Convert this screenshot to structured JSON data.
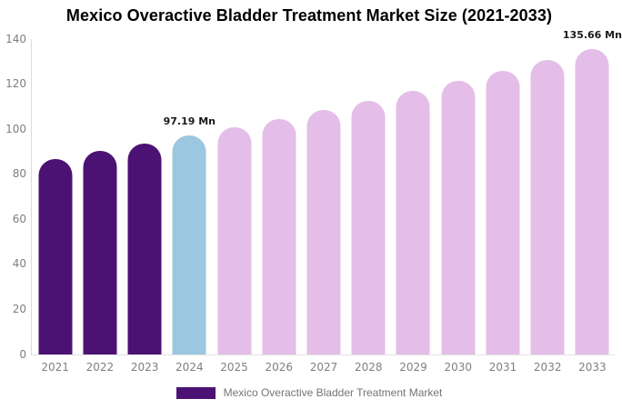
{
  "title": "Mexico Overactive Bladder Treatment Market Size (2021-2033)",
  "chart_data": {
    "type": "bar",
    "title": "Mexico Overactive Bladder Treatment Market Size (2021-2033)",
    "categories": [
      "2021",
      "2022",
      "2023",
      "2024",
      "2025",
      "2026",
      "2027",
      "2028",
      "2029",
      "2030",
      "2031",
      "2032",
      "2033"
    ],
    "values": [
      86.96,
      90.24,
      93.65,
      97.19,
      100.86,
      104.67,
      108.62,
      112.72,
      116.98,
      121.4,
      125.98,
      130.74,
      135.66
    ],
    "bar_colors": [
      "#4B1274",
      "#4B1274",
      "#4B1274",
      "#9CC7E0",
      "#E4BDE8",
      "#E4BDE8",
      "#E4BDE8",
      "#E4BDE8",
      "#E4BDE8",
      "#E4BDE8",
      "#E4BDE8",
      "#E4BDE8",
      "#E4BDE8"
    ],
    "annotations": [
      {
        "category": "2024",
        "text": "97.19 Mn"
      },
      {
        "category": "2033",
        "text": "135.66 Mn"
      }
    ],
    "xlabel": "",
    "ylabel": "",
    "ylim": [
      0,
      140
    ],
    "yticks": [
      0,
      20,
      40,
      60,
      80,
      100,
      120,
      140
    ],
    "grid": false,
    "legend": {
      "position": "bottom",
      "entries": [
        {
          "label": "Mexico Overactive Bladder Treatment Market",
          "color": "#4B1274"
        }
      ]
    }
  },
  "colors": {
    "historical_bar": "#4B1274",
    "current_year_bar": "#9CC7E0",
    "forecast_bar": "#E4BDE8",
    "axis_line": "#DCDCDC",
    "tick_label": "#7F7F7F",
    "annotation_text": "#1A1A1A",
    "legend_text": "#757575",
    "title_text": "#000000",
    "background": "#FFFFFF"
  }
}
